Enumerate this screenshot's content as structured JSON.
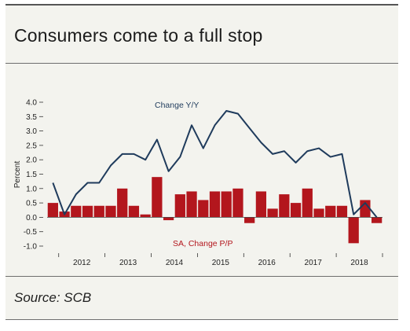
{
  "title": "Consumers come to a full stop",
  "source": "Source: SCB",
  "colors": {
    "line": "#1f3b5c",
    "bar": "#b3161d",
    "background": "#f3f3ee"
  },
  "chart_data": {
    "type": "bar",
    "ylabel": "Percent",
    "ylim": [
      -1.0,
      4.0
    ],
    "yticks": [
      "4.0",
      "3.5",
      "3.0",
      "2.5",
      "2.0",
      "1.5",
      "1.0",
      "0.5",
      "0.0",
      "-0.5",
      "-1.0"
    ],
    "ytick_values": [
      4.0,
      3.5,
      3.0,
      2.5,
      2.0,
      1.5,
      1.0,
      0.5,
      0.0,
      -0.5,
      -1.0
    ],
    "xtick_labels": [
      "2012",
      "2013",
      "2014",
      "2015",
      "2016",
      "2017",
      "2018"
    ],
    "categories": [
      "2011 Q4",
      "2012 Q1",
      "2012 Q2",
      "2012 Q3",
      "2012 Q4",
      "2013 Q1",
      "2013 Q2",
      "2013 Q3",
      "2013 Q4",
      "2014 Q1",
      "2014 Q2",
      "2014 Q3",
      "2014 Q4",
      "2015 Q1",
      "2015 Q2",
      "2015 Q3",
      "2015 Q4",
      "2016 Q1",
      "2016 Q2",
      "2016 Q3",
      "2016 Q4",
      "2017 Q1",
      "2017 Q2",
      "2017 Q3",
      "2017 Q4",
      "2018 Q1",
      "2018 Q2",
      "2018 Q3",
      "2018 Q4"
    ],
    "series": [
      {
        "name": "Change Y/Y",
        "kind": "line",
        "values": [
          1.2,
          0.1,
          0.8,
          1.2,
          1.2,
          1.8,
          2.2,
          2.2,
          2.0,
          2.7,
          1.6,
          2.1,
          3.2,
          2.4,
          3.2,
          3.7,
          3.6,
          3.1,
          2.6,
          2.2,
          2.3,
          1.9,
          2.3,
          2.4,
          2.1,
          2.2,
          0.1,
          0.5,
          0.0
        ]
      },
      {
        "name": "SA, Change P/P",
        "kind": "bar",
        "values": [
          0.5,
          0.2,
          0.4,
          0.4,
          0.4,
          0.4,
          1.0,
          0.4,
          0.1,
          1.4,
          -0.1,
          0.8,
          0.9,
          0.6,
          0.9,
          0.9,
          1.0,
          -0.2,
          0.9,
          0.3,
          0.8,
          0.5,
          1.0,
          0.3,
          0.4,
          0.4,
          -0.9,
          0.6,
          -0.2
        ]
      }
    ],
    "grid": false,
    "legend": "inline labels"
  }
}
